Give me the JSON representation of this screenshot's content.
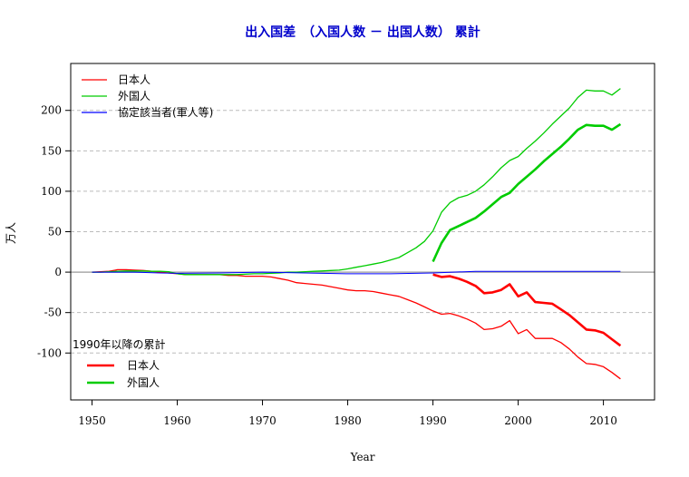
{
  "chart_data": {
    "type": "line",
    "title": "出入国差　（入国人数 － 出国人数） 累計",
    "xlabel": "Year",
    "ylabel": "万人",
    "xlim": [
      1947.5,
      2016
    ],
    "ylim": [
      -158,
      258
    ],
    "x_ticks": [
      1950,
      1960,
      1970,
      1980,
      1990,
      2000,
      2010
    ],
    "y_ticks": [
      -100,
      -50,
      0,
      50,
      100,
      150,
      200
    ],
    "grid": "horizontal dashed at y ticks",
    "legend_top": {
      "placement": "top-left",
      "entries": [
        {
          "label": "日本人",
          "color": "#ff0000"
        },
        {
          "label": "外国人",
          "color": "#00cc00"
        },
        {
          "label": "協定該当者(軍人等)",
          "color": "#0000ff"
        }
      ]
    },
    "legend_bottom": {
      "placement": "bottom-left",
      "title": "1990年以降の累計",
      "entries": [
        {
          "label": "日本人",
          "color": "#ff0000"
        },
        {
          "label": "外国人",
          "color": "#00cc00"
        }
      ]
    },
    "series": [
      {
        "name": "日本人",
        "color": "#ff0000",
        "width": 1.3,
        "x": [
          1950,
          1951,
          1952,
          1953,
          1954,
          1955,
          1956,
          1957,
          1958,
          1959,
          1960,
          1961,
          1962,
          1963,
          1964,
          1965,
          1966,
          1967,
          1968,
          1969,
          1970,
          1971,
          1972,
          1973,
          1974,
          1975,
          1976,
          1977,
          1978,
          1979,
          1980,
          1981,
          1982,
          1983,
          1984,
          1985,
          1986,
          1987,
          1988,
          1989,
          1990,
          1991,
          1992,
          1993,
          1994,
          1995,
          1996,
          1997,
          1998,
          1999,
          2000,
          2001,
          2002,
          2003,
          2004,
          2005,
          2006,
          2007,
          2008,
          2009,
          2010,
          2011,
          2012
        ],
        "y": [
          0,
          0.5,
          1,
          3,
          3,
          2.5,
          2,
          1,
          0,
          -1,
          -2,
          -3,
          -3,
          -3,
          -3,
          -3,
          -4,
          -4,
          -5,
          -5,
          -5,
          -6,
          -8,
          -10,
          -13,
          -14,
          -15,
          -16,
          -18,
          -20,
          -22,
          -23,
          -23,
          -24,
          -26,
          -28,
          -30,
          -34,
          -38,
          -43,
          -48,
          -52,
          -51,
          -54,
          -58,
          -63,
          -71,
          -70,
          -67,
          -60,
          -76,
          -71,
          -82,
          -82,
          -82,
          -87,
          -95,
          -105,
          -113,
          -114,
          -117,
          -124,
          -132
        ]
      },
      {
        "name": "外国人",
        "color": "#00cc00",
        "width": 1.3,
        "x": [
          1950,
          1951,
          1952,
          1953,
          1954,
          1955,
          1956,
          1957,
          1958,
          1959,
          1960,
          1961,
          1962,
          1963,
          1964,
          1965,
          1966,
          1967,
          1968,
          1969,
          1970,
          1971,
          1972,
          1973,
          1974,
          1975,
          1976,
          1977,
          1978,
          1979,
          1980,
          1981,
          1982,
          1983,
          1984,
          1985,
          1986,
          1987,
          1988,
          1989,
          1990,
          1991,
          1992,
          1993,
          1994,
          1995,
          1996,
          1997,
          1998,
          1999,
          2000,
          2001,
          2002,
          2003,
          2004,
          2005,
          2006,
          2007,
          2008,
          2009,
          2010,
          2011,
          2012
        ],
        "y": [
          0,
          0,
          0.5,
          1,
          1.5,
          1.5,
          1.5,
          1,
          1,
          0.5,
          -2,
          -3,
          -3,
          -3,
          -3,
          -3,
          -3,
          -3,
          -2.5,
          -2,
          -2,
          -1.5,
          -1,
          0,
          0,
          0.5,
          1,
          1.5,
          2,
          2.5,
          4,
          6,
          8,
          10,
          12,
          15,
          18,
          24,
          30,
          38,
          51,
          74,
          86,
          92,
          95,
          100,
          108,
          118,
          129,
          138,
          143,
          153,
          162,
          172,
          183,
          193,
          203,
          216,
          225,
          224,
          224,
          219,
          227
        ]
      },
      {
        "name": "協定該当者(軍人等)",
        "color": "#0000ff",
        "width": 1.0,
        "x": [
          1950,
          1955,
          1958,
          1960,
          1965,
          1970,
          1975,
          1980,
          1985,
          1990,
          1995,
          2000,
          2005,
          2012
        ],
        "y": [
          0,
          0,
          -1,
          -1.5,
          -1,
          0,
          -1,
          -2,
          -2,
          -1,
          1,
          1,
          1,
          1
        ]
      },
      {
        "name": "日本人 (1990年以降の累計)",
        "color": "#ff0000",
        "width": 2.6,
        "x": [
          1990,
          1991,
          1992,
          1993,
          1994,
          1995,
          1996,
          1997,
          1998,
          1999,
          2000,
          2001,
          2002,
          2003,
          2004,
          2005,
          2006,
          2007,
          2008,
          2009,
          2010,
          2011,
          2012
        ],
        "y": [
          -3,
          -6,
          -5,
          -8,
          -12,
          -17,
          -26,
          -25,
          -22,
          -15,
          -30,
          -25,
          -37,
          -38,
          -39,
          -46,
          -53,
          -62,
          -71,
          -72,
          -75,
          -83,
          -91
        ]
      },
      {
        "name": "外国人 (1990年以降の累計)",
        "color": "#00cc00",
        "width": 2.6,
        "x": [
          1990,
          1991,
          1992,
          1993,
          1994,
          1995,
          1996,
          1997,
          1998,
          1999,
          2000,
          2001,
          2002,
          2003,
          2004,
          2005,
          2006,
          2007,
          2008,
          2009,
          2010,
          2011,
          2012
        ],
        "y": [
          13,
          36,
          52,
          57,
          62,
          67,
          75,
          84,
          93,
          98,
          109,
          118,
          127,
          137,
          146,
          155,
          165,
          176,
          182,
          181,
          181,
          176,
          183
        ]
      }
    ]
  }
}
